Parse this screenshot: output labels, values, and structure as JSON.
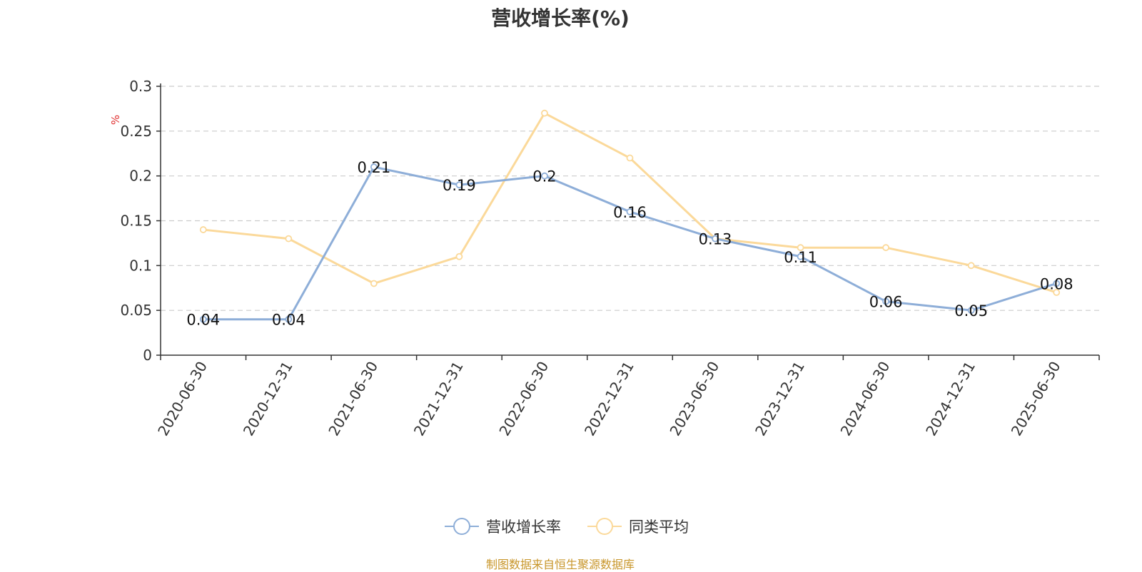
{
  "chart_data": {
    "type": "line",
    "title": "营收增长率(%)",
    "ylabel": "%",
    "xlabel": "",
    "ylim": [
      0,
      0.3
    ],
    "yticks": [
      "0",
      "0.05",
      "0.1",
      "0.15",
      "0.2",
      "0.25",
      "0.3"
    ],
    "grid": true,
    "legend_position": "bottom",
    "categories": [
      "2020-06-30",
      "2020-12-31",
      "2021-06-30",
      "2021-12-31",
      "2022-06-30",
      "2022-12-31",
      "2023-06-30",
      "2023-12-31",
      "2024-06-30",
      "2024-12-31",
      "2025-06-30"
    ],
    "series": [
      {
        "name": "营收增长率",
        "color": "#8eaed8",
        "values": [
          0.04,
          0.04,
          0.21,
          0.19,
          0.2,
          0.16,
          0.13,
          0.11,
          0.06,
          0.05,
          0.08
        ],
        "labels": [
          "0.04",
          "0.04",
          "0.21",
          "0.19",
          "0.2",
          "0.16",
          "0.13",
          "0.11",
          "0.06",
          "0.05",
          "0.08"
        ]
      },
      {
        "name": "同类平均",
        "color": "#fbd99a",
        "values": [
          0.14,
          0.13,
          0.08,
          0.11,
          0.27,
          0.22,
          0.13,
          0.12,
          0.12,
          0.1,
          0.07
        ]
      }
    ]
  },
  "source_note": "制图数据来自恒生聚源数据库"
}
